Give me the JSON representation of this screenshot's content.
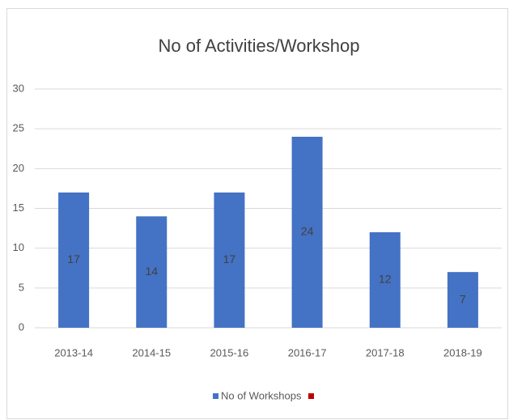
{
  "chart_data": {
    "type": "bar",
    "title": "No of Activities/Workshop",
    "categories": [
      "2013-14",
      "2014-15",
      "2015-16",
      "2016-17",
      "2017-18",
      "2018-19"
    ],
    "series": [
      {
        "name": "No of Workshops",
        "color": "#4472c4",
        "values": [
          17,
          14,
          17,
          24,
          12,
          7
        ]
      }
    ],
    "ylim": [
      0,
      30
    ],
    "yticks": [
      0,
      5,
      10,
      15,
      20,
      25,
      30
    ],
    "grid": true,
    "data_labels": true,
    "legend": "bottom"
  }
}
